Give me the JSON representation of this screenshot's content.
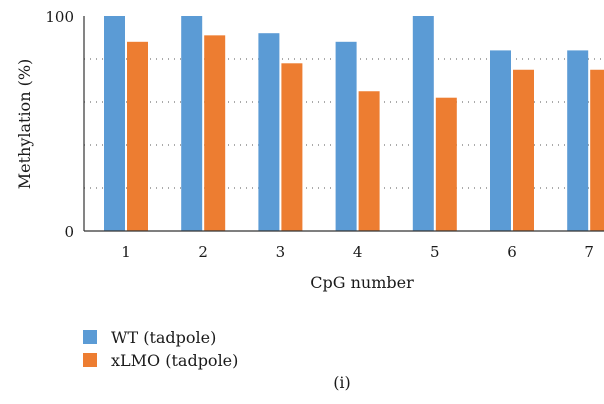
{
  "chart_data": {
    "type": "bar",
    "categories": [
      "1",
      "2",
      "3",
      "4",
      "5",
      "6",
      "7"
    ],
    "series": [
      {
        "name": "WT (tadpole)",
        "color": "#5b9bd5",
        "values": [
          100,
          100,
          92,
          88,
          100,
          84,
          84
        ]
      },
      {
        "name": "xLMO (tadpole)",
        "color": "#ed7d31",
        "values": [
          88,
          91,
          78,
          65,
          62,
          75,
          75
        ]
      }
    ],
    "xlabel": "CpG number",
    "ylabel": "Methylation (%)",
    "ylim": [
      0,
      100
    ],
    "yticks": [
      "0",
      "100"
    ],
    "grid": true,
    "legend_position": "bottom-left",
    "panel_label": "(i)"
  }
}
